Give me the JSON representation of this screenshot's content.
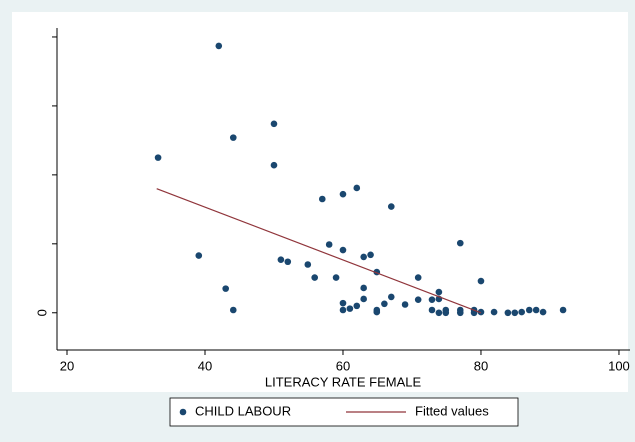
{
  "chart_data": {
    "type": "scatter",
    "x_label": "LITERACY RATE FEMALE",
    "xlim": [
      18.55,
      101.6
    ],
    "xticks": [
      20,
      40,
      60,
      80,
      100
    ],
    "ylim": [
      -0.54,
      4.13
    ],
    "yticks": [
      0,
      {
        "value": 1,
        "label": null
      },
      {
        "value": 2,
        "label": null
      },
      {
        "value": 3,
        "label": null
      },
      {
        "value": 4,
        "label": null
      }
    ],
    "series": [
      {
        "name": "CHILD LABOUR",
        "kind": "scatter",
        "color": "#1a476f",
        "x": [
          33.2,
          42.0,
          44.1,
          50.0,
          50.0,
          39.1,
          43.0,
          44.1,
          51.0,
          52.0,
          54.9,
          55.9,
          57.0,
          58.0,
          59.0,
          60.0,
          60.0,
          62.0,
          63.0,
          64.0,
          64.9,
          67.0,
          63.0,
          60.0,
          60.0,
          61.0,
          62.0,
          63.0,
          64.9,
          64.9,
          66.0,
          67.0,
          69.0,
          70.9,
          70.9,
          72.9,
          72.9,
          73.9,
          73.9,
          73.9,
          74.9,
          74.9,
          77.0,
          77.0,
          77.0,
          79.0,
          79.0,
          80.0,
          80.0,
          81.9,
          83.9,
          84.9,
          85.9,
          87.0,
          88.0,
          89.0,
          91.9
        ],
        "values": [
          2.25,
          3.87,
          2.54,
          2.74,
          2.14,
          0.83,
          0.35,
          0.04,
          0.77,
          0.74,
          0.7,
          0.51,
          1.65,
          0.99,
          0.51,
          1.72,
          0.91,
          1.81,
          0.81,
          0.84,
          0.59,
          1.54,
          0.36,
          0.14,
          0.04,
          0.06,
          0.1,
          0.2,
          0.04,
          0.01,
          0.13,
          0.23,
          0.12,
          0.51,
          0.19,
          0.19,
          0.04,
          0.3,
          0.2,
          0.0,
          0.04,
          0.0,
          0.04,
          0.0,
          1.01,
          0.0,
          0.04,
          0.46,
          0.01,
          0.01,
          0.0,
          0.0,
          0.01,
          0.04,
          0.04,
          0.01,
          0.04
        ]
      },
      {
        "name": "Fitted values",
        "kind": "line",
        "color": "#90353b",
        "x": [
          33.0,
          80.0
        ],
        "values": [
          1.8,
          0.0
        ]
      }
    ]
  }
}
